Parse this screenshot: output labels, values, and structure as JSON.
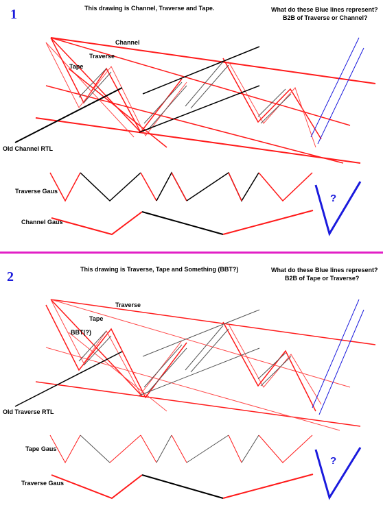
{
  "colors": {
    "red": "#ff1a1a",
    "light_red": "#ff4a4a",
    "black": "#000000",
    "gray": "#555555",
    "blue": "#1a1add",
    "divider": "#e21fc6"
  },
  "panel1": {
    "number": "1",
    "title": "This drawing is Channel, Traverse and Tape.",
    "question_line1": "What do these Blue lines represent?",
    "question_line2": "B2B of Traverse or Channel?",
    "labels": {
      "channel": "Channel",
      "traverse": "Traverse",
      "tape": "Tape",
      "old_rtl": "Old Channel RTL",
      "gaus_upper": "Traverse Gaus",
      "gaus_lower": "Channel Gaus"
    },
    "question_mark": "?"
  },
  "panel2": {
    "number": "2",
    "title": "This drawing is Traverse, Tape and Something (BBT?)",
    "question_line1": "What do these Blue lines represent?",
    "question_line2": "B2B of Tape or Traverse?",
    "labels": {
      "traverse": "Traverse",
      "tape": "Tape",
      "bbt": "BBT(?)",
      "old_rtl": "Old Traverse RTL",
      "gaus_upper": "Tape Gaus",
      "gaus_lower": "Traverse Gaus"
    },
    "question_mark": "?"
  },
  "divider_icon": "horizontal-rule"
}
